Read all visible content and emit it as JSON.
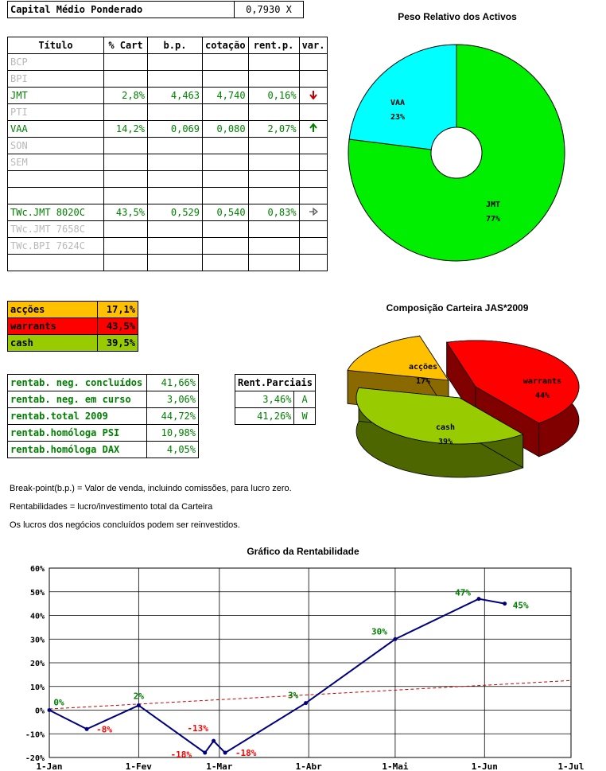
{
  "header": {
    "label": "Capital Médio Ponderado",
    "value": "0,7930 X"
  },
  "portfolio_table": {
    "headers": [
      "Título",
      "% Cart",
      "b.p.",
      "cotação",
      "rent.p.",
      "var."
    ],
    "rows": [
      {
        "titulo": "BCP",
        "cart": "",
        "bp": "",
        "cot": "",
        "rent": "",
        "var": "",
        "style": "gray"
      },
      {
        "titulo": "BPI",
        "cart": "",
        "bp": "",
        "cot": "",
        "rent": "",
        "var": "",
        "style": "gray"
      },
      {
        "titulo": "JMT",
        "cart": "2,8%",
        "bp": "4,463",
        "cot": "4,740",
        "rent": "0,16%",
        "var": "down-arrow",
        "style": "green"
      },
      {
        "titulo": "PTI",
        "cart": "",
        "bp": "",
        "cot": "",
        "rent": "",
        "var": "",
        "style": "gray"
      },
      {
        "titulo": "VAA",
        "cart": "14,2%",
        "bp": "0,069",
        "cot": "0,080",
        "rent": "2,07%",
        "var": "up-arrow",
        "style": "green"
      },
      {
        "titulo": "SON",
        "cart": "",
        "bp": "",
        "cot": "",
        "rent": "",
        "var": "",
        "style": "gray"
      },
      {
        "titulo": "SEM",
        "cart": "",
        "bp": "",
        "cot": "",
        "rent": "",
        "var": "",
        "style": "gray"
      },
      {
        "titulo": "",
        "cart": "",
        "bp": "",
        "cot": "",
        "rent": "",
        "var": "",
        "style": "gray"
      },
      {
        "titulo": "",
        "cart": "",
        "bp": "",
        "cot": "",
        "rent": "",
        "var": "",
        "style": "gray"
      },
      {
        "titulo": "TWc.JMT 8020C",
        "cart": "43,5%",
        "bp": "0,529",
        "cot": "0,540",
        "rent": "0,83%",
        "var": "right-arrow",
        "style": "green"
      },
      {
        "titulo": "TWc.JMT 7658C",
        "cart": "",
        "bp": "",
        "cot": "",
        "rent": "",
        "var": "",
        "style": "gray"
      },
      {
        "titulo": "TWc.BPI 7624C",
        "cart": "",
        "bp": "",
        "cot": "",
        "rent": "",
        "var": "",
        "style": "gray"
      },
      {
        "titulo": "",
        "cart": "",
        "bp": "",
        "cot": "",
        "rent": "",
        "var": "",
        "style": "gray"
      }
    ]
  },
  "allocation": [
    {
      "label": "acções",
      "value": "17,1%",
      "color": "#FFC000"
    },
    {
      "label": "warrants",
      "value": "43,5%",
      "color": "#FF0000"
    },
    {
      "label": "cash",
      "value": "39,5%",
      "color": "#99CC00"
    }
  ],
  "rentab": [
    {
      "label": "rentab. neg. concluídos",
      "value": "41,66%"
    },
    {
      "label": "rentab. neg. em curso",
      "value": "3,06%"
    },
    {
      "label": "rentab.total 2009",
      "value": "44,72%"
    },
    {
      "label": "rentab.homóloga PSI",
      "value": "10,98%"
    },
    {
      "label": "rentab.homóloga DAX",
      "value": "4,05%"
    }
  ],
  "rent_parciais": {
    "header": "Rent.Parciais",
    "rows": [
      {
        "value": "3,46%",
        "code": "A"
      },
      {
        "value": "41,26%",
        "code": "W"
      }
    ]
  },
  "notes": [
    "Break-point(b.p.) = Valor de venda, incluindo comissões, para lucro zero.",
    "Rentabilidades = lucro/investimento total da Carteira",
    "Os lucros dos negócios concluídos podem ser reinvestidos."
  ],
  "chart_data": [
    {
      "type": "pie",
      "title": "Peso Relativo dos Activos",
      "donut": true,
      "slices": [
        {
          "label": "JMT",
          "pct_label": "77%",
          "value": 77,
          "color": "#00EE00"
        },
        {
          "label": "VAA",
          "pct_label": "23%",
          "value": 23,
          "color": "#00FFFF"
        }
      ]
    },
    {
      "type": "pie",
      "title": "Composição Carteira JAS*2009",
      "style": "3d-exploded",
      "slices": [
        {
          "label": "acções",
          "pct_label": "17%",
          "value": 17,
          "color": "#FFC000"
        },
        {
          "label": "warrants",
          "pct_label": "44%",
          "value": 44,
          "color": "#FF0000"
        },
        {
          "label": "cash",
          "pct_label": "39%",
          "value": 39,
          "color": "#99CC00"
        }
      ]
    },
    {
      "type": "line",
      "title": "Gráfico da Rentabilidade",
      "x_ticks": [
        "1-Jan",
        "1-Fev",
        "1-Mar",
        "1-Abr",
        "1-Mai",
        "1-Jun",
        "1-Jul"
      ],
      "x_tick_days": [
        0,
        31,
        59,
        90,
        120,
        151,
        181
      ],
      "ylim": [
        -20,
        60
      ],
      "y_ticks": [
        "-20%",
        "-10%",
        "0%",
        "10%",
        "20%",
        "30%",
        "40%",
        "50%",
        "60%"
      ],
      "y_tick_values": [
        -20,
        -10,
        0,
        10,
        20,
        30,
        40,
        50,
        60
      ],
      "grid": true,
      "series": [
        {
          "color": "#000080",
          "points": [
            {
              "x": 0,
              "y": 0,
              "label": "0%"
            },
            {
              "x": 13,
              "y": -8,
              "label": "-8%"
            },
            {
              "x": 31,
              "y": 2,
              "label": "2%"
            },
            {
              "x": 54,
              "y": -18,
              "label": "-18%"
            },
            {
              "x": 57,
              "y": -13,
              "label": "-13%"
            },
            {
              "x": 61,
              "y": -18,
              "label": "-18%"
            },
            {
              "x": 89,
              "y": 3,
              "label": "3%"
            },
            {
              "x": 120,
              "y": 30,
              "label": "30%"
            },
            {
              "x": 149,
              "y": 47,
              "label": "47%"
            },
            {
              "x": 158,
              "y": 45,
              "label": "45%"
            }
          ]
        }
      ],
      "trendline": {
        "style": "dashed",
        "color": "#CC0000",
        "y_start": 0.5,
        "y_end": 12.5
      }
    }
  ]
}
